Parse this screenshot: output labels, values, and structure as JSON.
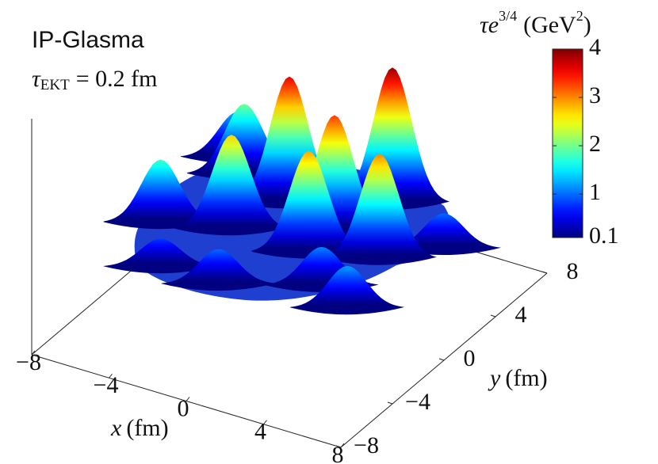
{
  "chart_data": {
    "type": "surface3d",
    "title": "IP-Glasma",
    "subtitle": {
      "symbol": "τ",
      "subscript": "EKT",
      "rest": "= 0.2 fm"
    },
    "colorbar_label": {
      "base": "τe",
      "exponent": "3/4",
      "unit": "(GeV",
      "unit_exponent": "2",
      "close": ")"
    },
    "xlabel": {
      "symbol": "x",
      "unit": "(fm)"
    },
    "ylabel": {
      "symbol": "y",
      "unit": "(fm)"
    },
    "xlim": [
      -8,
      8
    ],
    "ylim": [
      -8,
      8
    ],
    "xticks": [
      {
        "value": -8,
        "label": "−8"
      },
      {
        "value": -4,
        "label": "−4"
      },
      0,
      4,
      8
    ],
    "yticks": [
      {
        "value": -8,
        "label": "−8"
      },
      {
        "value": -4,
        "label": "−4"
      },
      0,
      4,
      8
    ],
    "clim": [
      0.1,
      4
    ],
    "cticks": [
      0.1,
      1,
      2,
      3,
      4
    ],
    "colormap": "jet",
    "x": [
      -2,
      2,
      1,
      4,
      1,
      -3,
      -5,
      -6,
      5,
      -1,
      6,
      -4,
      3,
      -6
    ],
    "y": [
      3,
      5,
      2,
      1,
      0,
      0,
      4,
      -1,
      -3,
      -4,
      3,
      -4,
      -2,
      5
    ],
    "values": [
      3.6,
      3.9,
      3.3,
      3.0,
      2.9,
      2.7,
      2.0,
      1.8,
      1.2,
      1.0,
      1.0,
      0.8,
      1.1,
      1.3
    ]
  }
}
